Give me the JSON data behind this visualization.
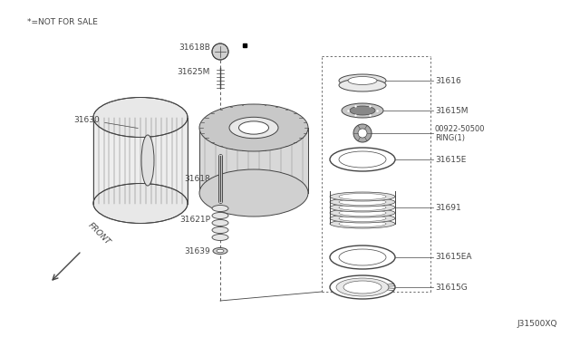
{
  "background_color": "#ffffff",
  "diagram_id": "J31500XQ",
  "not_for_sale_text": "*=NOT FOR SALE",
  "front_arrow_text": "FRONT",
  "line_color": "#444444",
  "font_size": 6.5
}
